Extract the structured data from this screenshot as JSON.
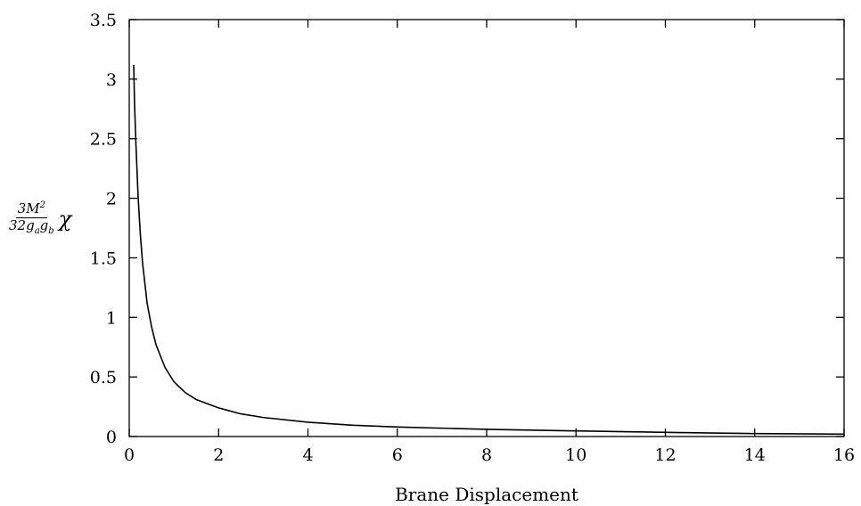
{
  "chart_data": {
    "type": "line",
    "xlabel": "Brane Displacement",
    "ylabel": "3M²/(32 g_a g_b) χ",
    "ylabel_parts": {
      "numerator": "3M",
      "numerator_sup": "2",
      "denominator": "32g",
      "sub_a": "a",
      "mid": "g",
      "sub_b": "b",
      "symbol": "χ"
    },
    "xlim": [
      0,
      16
    ],
    "ylim": [
      0,
      3.5
    ],
    "xticks": [
      0,
      2,
      4,
      6,
      8,
      10,
      12,
      14,
      16
    ],
    "yticks": [
      0,
      0.5,
      1,
      1.5,
      2,
      2.5,
      3,
      3.5
    ],
    "xtick_labels": [
      "0",
      "2",
      "4",
      "6",
      "8",
      "10",
      "12",
      "14",
      "16"
    ],
    "ytick_labels": [
      "0",
      "0.5",
      "1",
      "1.5",
      "2",
      "2.5",
      "3",
      "3.5"
    ],
    "grid": false,
    "series": [
      {
        "x": [
          0.1,
          0.12,
          0.15,
          0.2,
          0.25,
          0.3,
          0.4,
          0.5,
          0.6,
          0.8,
          1.0,
          1.25,
          1.5,
          2.0,
          2.5,
          3.0,
          4.0,
          5.0,
          6.0,
          8.0,
          10.0,
          12.0,
          14.0,
          16.0
        ],
        "y": [
          3.12,
          2.78,
          2.45,
          2.0,
          1.69,
          1.45,
          1.12,
          0.92,
          0.77,
          0.58,
          0.46,
          0.37,
          0.31,
          0.24,
          0.19,
          0.16,
          0.12,
          0.095,
          0.08,
          0.06,
          0.047,
          0.035,
          0.025,
          0.02
        ]
      }
    ]
  }
}
